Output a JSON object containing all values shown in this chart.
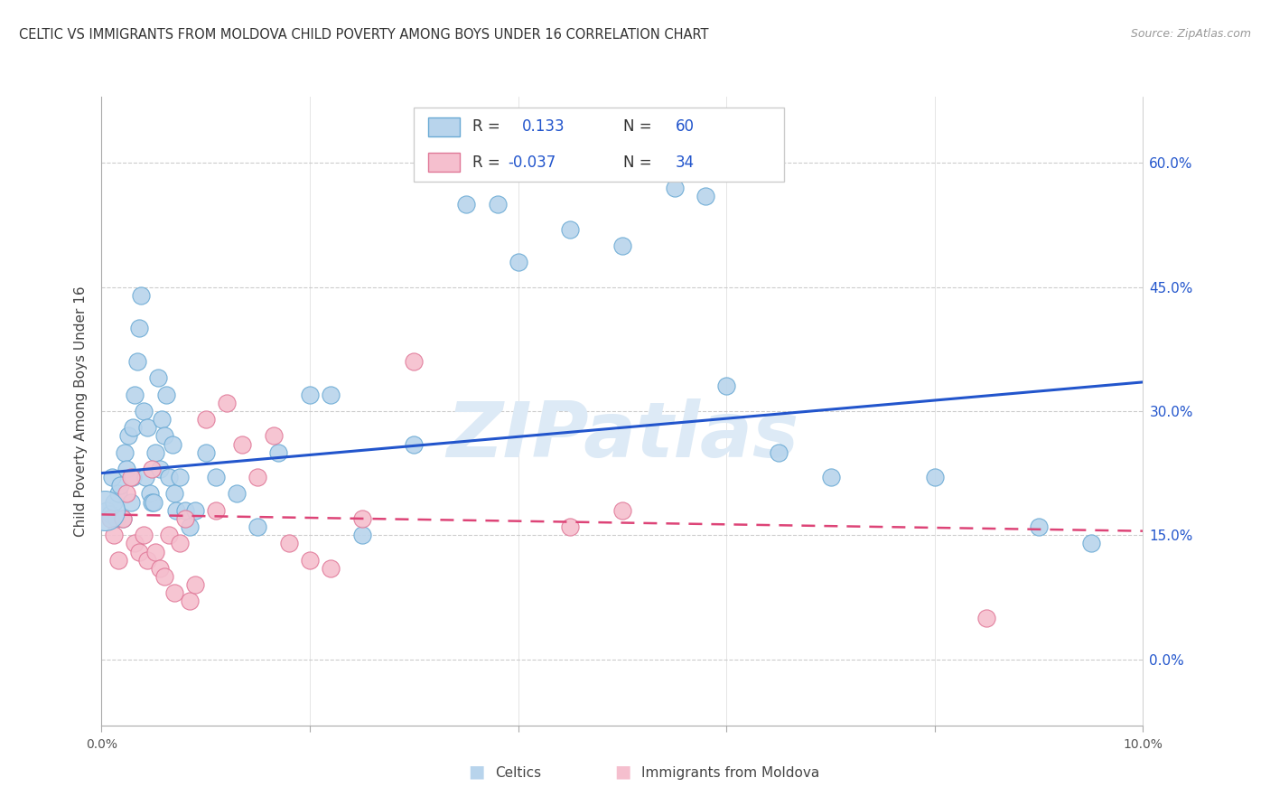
{
  "title": "CELTIC VS IMMIGRANTS FROM MOLDOVA CHILD POVERTY AMONG BOYS UNDER 16 CORRELATION CHART",
  "source": "Source: ZipAtlas.com",
  "ylabel": "Child Poverty Among Boys Under 16",
  "xlim": [
    0.0,
    10.0
  ],
  "ylim": [
    -8.0,
    68.0
  ],
  "yticks": [
    0.0,
    15.0,
    30.0,
    45.0,
    60.0
  ],
  "ytick_labels": [
    "0.0%",
    "15.0%",
    "30.0%",
    "45.0%",
    "60.0%"
  ],
  "xtick_positions": [
    0,
    2,
    4,
    6,
    8,
    10
  ],
  "x_left_label": "0.0%",
  "x_right_label": "10.0%",
  "celtics_fill": "#b8d4ec",
  "celtics_edge": "#6aaad4",
  "moldova_fill": "#f5bfce",
  "moldova_edge": "#e07898",
  "line_blue": "#2255cc",
  "line_pink": "#dd4477",
  "watermark": "ZIPatlas",
  "blue_line_x": [
    0.0,
    10.0
  ],
  "blue_line_y": [
    22.5,
    33.5
  ],
  "pink_line_x": [
    0.0,
    10.0
  ],
  "pink_line_y": [
    17.5,
    15.5
  ],
  "celtics_x": [
    0.05,
    0.08,
    0.1,
    0.12,
    0.14,
    0.16,
    0.18,
    0.2,
    0.22,
    0.24,
    0.26,
    0.28,
    0.3,
    0.3,
    0.32,
    0.34,
    0.36,
    0.38,
    0.4,
    0.42,
    0.44,
    0.46,
    0.48,
    0.5,
    0.52,
    0.54,
    0.56,
    0.58,
    0.6,
    0.62,
    0.65,
    0.68,
    0.7,
    0.72,
    0.75,
    0.8,
    0.85,
    0.9,
    1.0,
    1.1,
    1.3,
    1.5,
    1.7,
    2.0,
    2.2,
    2.5,
    3.0,
    3.5,
    3.8,
    4.0,
    4.5,
    5.0,
    5.5,
    5.8,
    6.0,
    6.5,
    7.0,
    8.0,
    9.0,
    9.5
  ],
  "celtics_y": [
    18.0,
    17.5,
    22.0,
    19.0,
    17.0,
    20.0,
    21.0,
    17.0,
    25.0,
    23.0,
    27.0,
    19.0,
    22.0,
    28.0,
    32.0,
    36.0,
    40.0,
    44.0,
    30.0,
    22.0,
    28.0,
    20.0,
    19.0,
    19.0,
    25.0,
    34.0,
    23.0,
    29.0,
    27.0,
    32.0,
    22.0,
    26.0,
    20.0,
    18.0,
    22.0,
    18.0,
    16.0,
    18.0,
    25.0,
    22.0,
    20.0,
    16.0,
    25.0,
    32.0,
    32.0,
    15.0,
    26.0,
    55.0,
    55.0,
    48.0,
    52.0,
    50.0,
    57.0,
    56.0,
    33.0,
    25.0,
    22.0,
    22.0,
    16.0,
    14.0
  ],
  "moldova_x": [
    0.08,
    0.12,
    0.16,
    0.2,
    0.24,
    0.28,
    0.32,
    0.36,
    0.4,
    0.44,
    0.48,
    0.52,
    0.56,
    0.6,
    0.65,
    0.7,
    0.75,
    0.8,
    0.85,
    0.9,
    1.0,
    1.1,
    1.2,
    1.35,
    1.5,
    1.65,
    1.8,
    2.0,
    2.2,
    2.5,
    3.0,
    4.5,
    5.0,
    8.5
  ],
  "moldova_y": [
    17.0,
    15.0,
    12.0,
    17.0,
    20.0,
    22.0,
    14.0,
    13.0,
    15.0,
    12.0,
    23.0,
    13.0,
    11.0,
    10.0,
    15.0,
    8.0,
    14.0,
    17.0,
    7.0,
    9.0,
    29.0,
    18.0,
    31.0,
    26.0,
    22.0,
    27.0,
    14.0,
    12.0,
    11.0,
    17.0,
    36.0,
    16.0,
    18.0,
    5.0
  ],
  "big_dot_x": [
    0.03
  ],
  "big_dot_y": [
    18.0
  ]
}
